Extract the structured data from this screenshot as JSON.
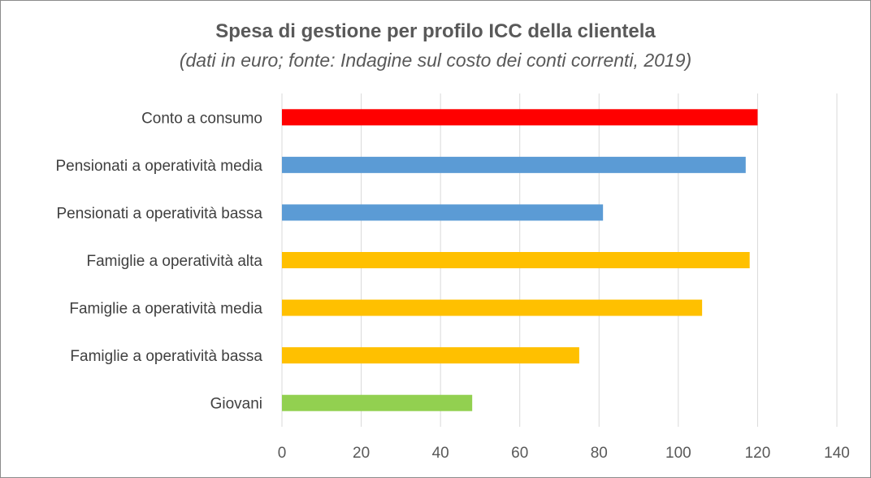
{
  "chart_data": {
    "type": "bar",
    "orientation": "horizontal",
    "title": "Spesa di gestione per profilo ICC della clientela",
    "subtitle": "(dati in euro; fonte: Indagine sul costo dei conti correnti, 2019)",
    "categories": [
      "Conto a consumo",
      "Pensionati a operatività media",
      "Pensionati a operatività bassa",
      "Famiglie a operatività alta",
      "Famiglie a operatività media",
      "Famiglie a operatività bassa",
      "Giovani"
    ],
    "values": [
      120,
      117,
      81,
      118,
      106,
      75,
      48
    ],
    "colors": [
      "#ff0000",
      "#5b9bd5",
      "#5b9bd5",
      "#ffc000",
      "#ffc000",
      "#ffc000",
      "#92d050"
    ],
    "xlim": [
      0,
      140
    ],
    "xticks": [
      0,
      20,
      40,
      60,
      80,
      100,
      120,
      140
    ],
    "grid": true,
    "legend": "none"
  }
}
